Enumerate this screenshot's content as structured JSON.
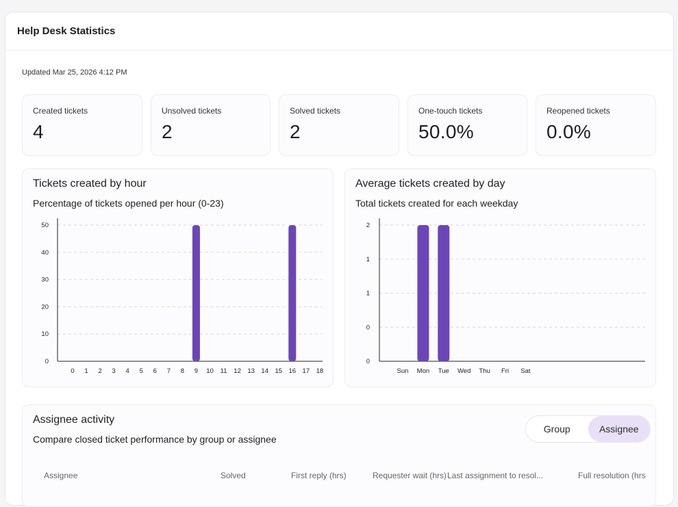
{
  "panel": {
    "title": "Help Desk Statistics"
  },
  "updated": "Updated Mar 25, 2026 4:12 PM",
  "stats": [
    {
      "label": "Created tickets",
      "value": "4"
    },
    {
      "label": "Unsolved tickets",
      "value": "2"
    },
    {
      "label": "Solved tickets",
      "value": "2"
    },
    {
      "label": "One-touch tickets",
      "value": "50.0%"
    },
    {
      "label": "Reopened tickets",
      "value": "0.0%"
    }
  ],
  "hour_chart": {
    "title": "Tickets created by hour",
    "subtitle": "Percentage of tickets opened per hour (0-23)"
  },
  "day_chart": {
    "title": "Average tickets created by day",
    "subtitle": "Total tickets created for each weekday"
  },
  "chart_data": [
    {
      "type": "bar",
      "title": "Tickets created by hour",
      "subtitle": "Percentage of tickets opened per hour (0-23)",
      "categories": [
        "0",
        "1",
        "2",
        "3",
        "4",
        "5",
        "6",
        "7",
        "8",
        "9",
        "10",
        "11",
        "12",
        "13",
        "14",
        "15",
        "16",
        "17",
        "18"
      ],
      "values": [
        0,
        0,
        0,
        0,
        0,
        0,
        0,
        0,
        0,
        50,
        0,
        0,
        0,
        0,
        0,
        0,
        50,
        0,
        0
      ],
      "y_ticks": [
        "0",
        "10",
        "20",
        "30",
        "40",
        "50"
      ],
      "ylim": [
        0,
        50
      ],
      "grid": true,
      "color": "#6b46b8"
    },
    {
      "type": "bar",
      "title": "Average tickets created by day",
      "subtitle": "Total tickets created for each weekday",
      "categories": [
        "Sun",
        "Mon",
        "Tue",
        "Wed",
        "Thu",
        "Fri",
        "Sat"
      ],
      "values": [
        0,
        2,
        2,
        0,
        0,
        0,
        0
      ],
      "y_ticks": [
        "0",
        "0",
        "1",
        "1",
        "2"
      ],
      "ylim": [
        0,
        2
      ],
      "grid": true,
      "color": "#6b46b8"
    }
  ],
  "assignee": {
    "title": "Assignee activity",
    "subtitle": "Compare closed ticket performance by group or assignee",
    "toggle": {
      "group": "Group",
      "assignee": "Assignee",
      "active": "Assignee"
    },
    "columns": [
      "Assignee",
      "Solved",
      "First reply (hrs)",
      "Requester wait (hrs)",
      "Last assignment to resol...",
      "Full resolution (hrs"
    ]
  }
}
